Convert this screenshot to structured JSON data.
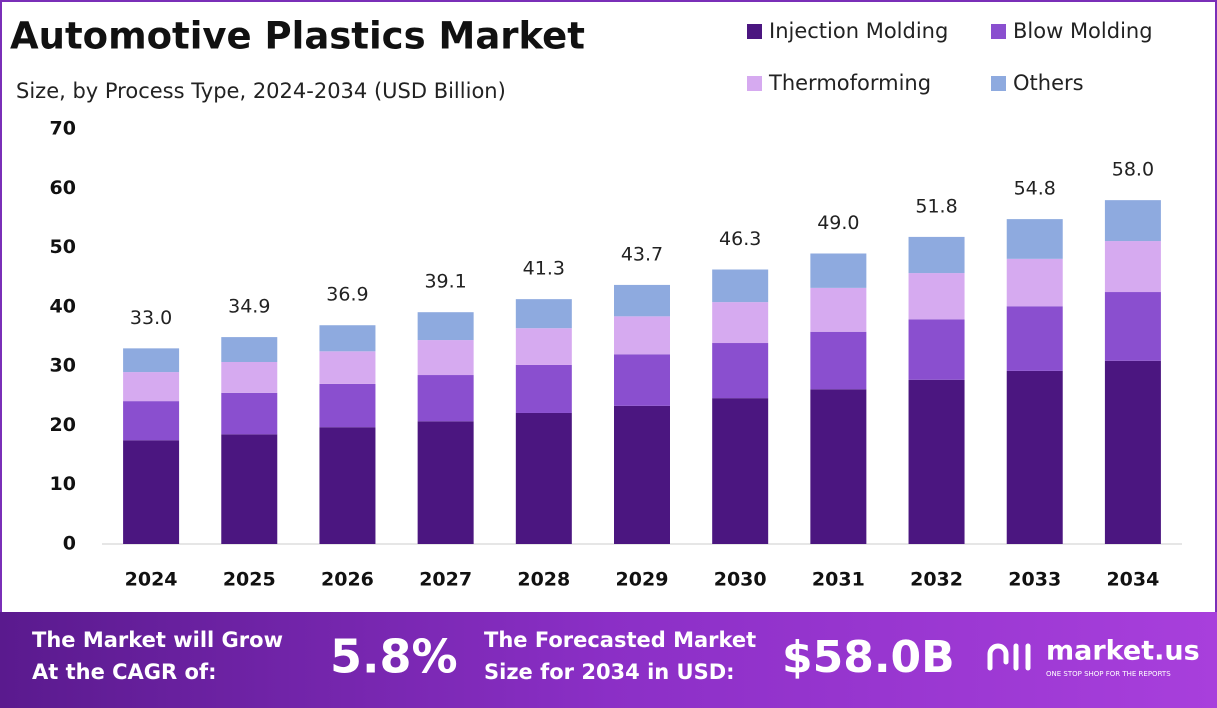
{
  "chart_data": {
    "type": "stacked-bar",
    "title": "Automotive Plastics Market",
    "subtitle": "Size, by Process Type, 2024-2034 (USD Billion)",
    "categories": [
      "2024",
      "2025",
      "2026",
      "2027",
      "2028",
      "2029",
      "2030",
      "2031",
      "2032",
      "2033",
      "2034"
    ],
    "series": [
      {
        "name": "Injection Molding",
        "color": "#4b1680",
        "values": [
          17.5,
          18.5,
          19.7,
          20.7,
          22.1,
          23.3,
          24.6,
          26.1,
          27.7,
          29.2,
          30.9
        ]
      },
      {
        "name": "Blow Molding",
        "color": "#8a4fcf",
        "values": [
          6.6,
          7.0,
          7.3,
          7.8,
          8.1,
          8.7,
          9.3,
          9.7,
          10.2,
          10.9,
          11.6
        ]
      },
      {
        "name": "Thermoforming",
        "color": "#d6aaf0",
        "values": [
          4.9,
          5.2,
          5.5,
          5.9,
          6.2,
          6.4,
          6.9,
          7.4,
          7.8,
          8.0,
          8.6
        ]
      },
      {
        "name": "Others",
        "color": "#8eaadf",
        "values": [
          4.0,
          4.2,
          4.4,
          4.7,
          4.9,
          5.3,
          5.5,
          5.8,
          6.1,
          6.7,
          6.9
        ]
      }
    ],
    "totals": [
      33.0,
      34.9,
      36.9,
      39.1,
      41.3,
      43.7,
      46.3,
      49.0,
      51.8,
      54.8,
      58.0
    ],
    "total_labels": [
      "33.0",
      "34.9",
      "36.9",
      "39.1",
      "41.3",
      "43.7",
      "46.3",
      "49.0",
      "51.8",
      "54.8",
      "58.0"
    ],
    "ylim": [
      0,
      70
    ],
    "yticks": [
      0,
      10,
      20,
      30,
      40,
      50,
      60,
      70
    ],
    "grid": false
  },
  "footer": {
    "cagr_text": [
      "The Market will Grow",
      "At the CAGR of:"
    ],
    "cagr_value": "5.8%",
    "forecast_text": [
      "The Forecasted Market",
      "Size for 2034 in USD:"
    ],
    "forecast_value": "$58.0B",
    "logo": "market.us",
    "tagline": "ONE STOP SHOP FOR THE REPORTS"
  }
}
